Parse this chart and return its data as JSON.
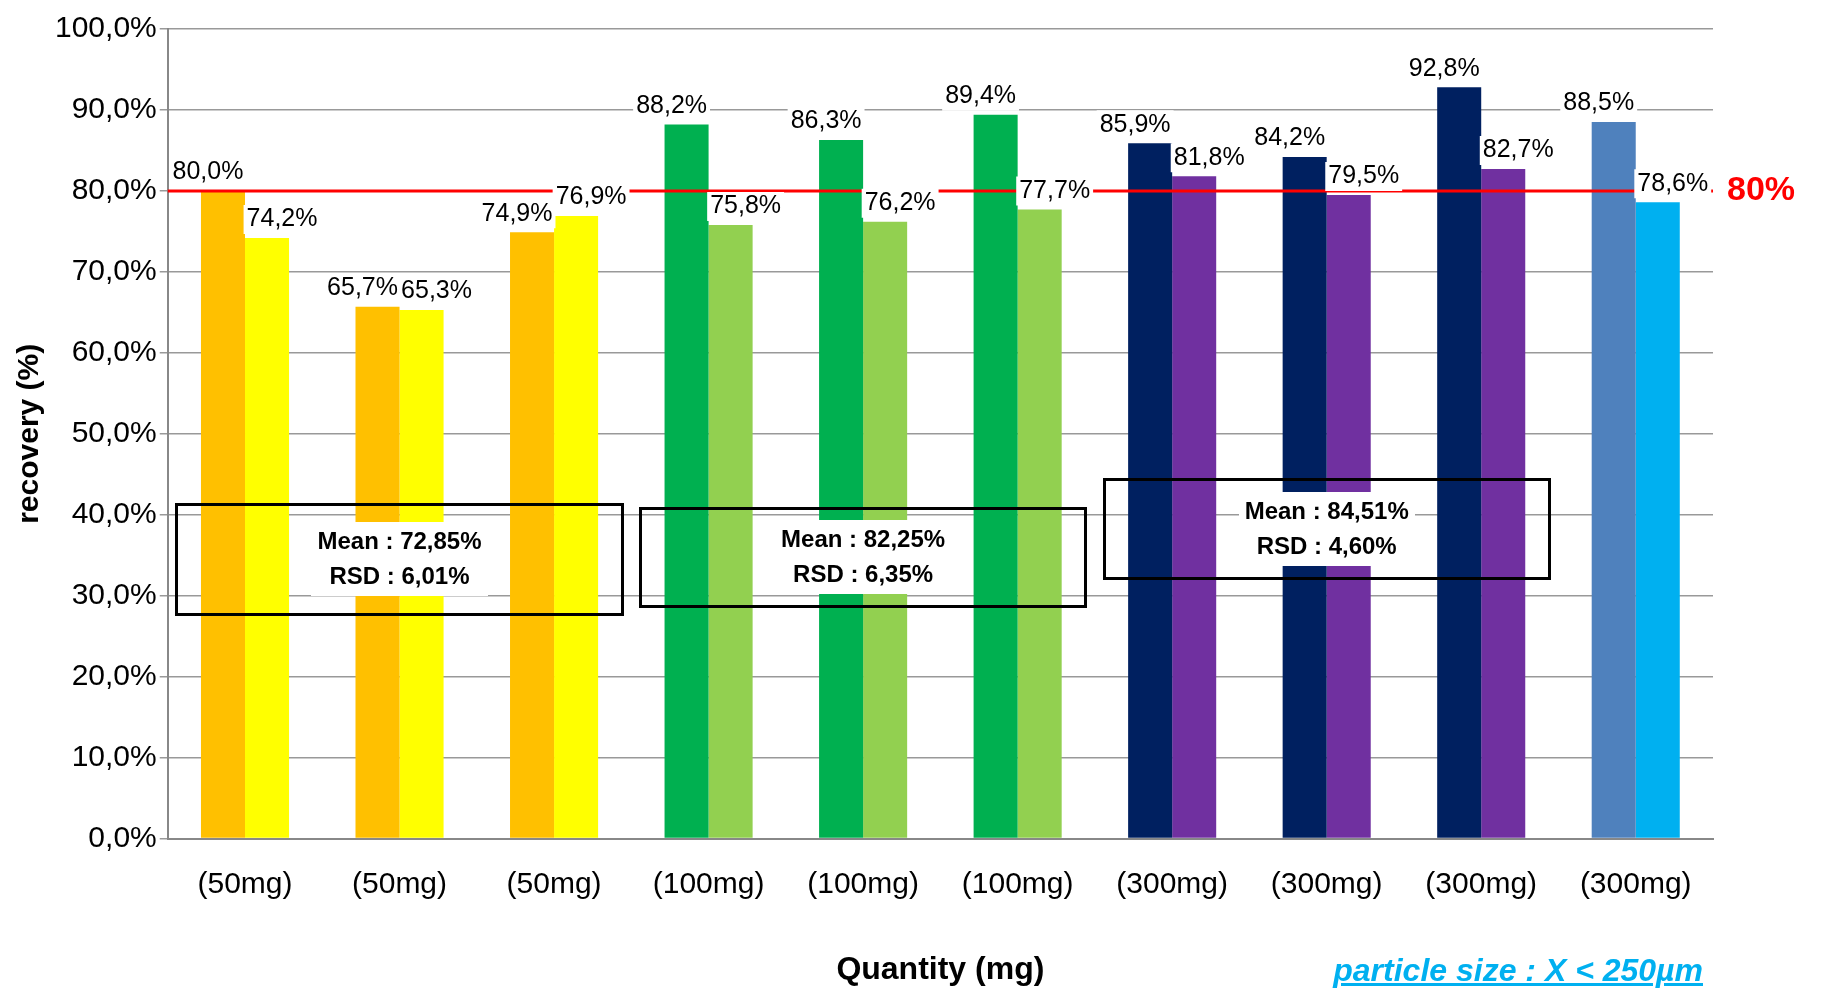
{
  "chart_data": {
    "type": "bar",
    "xlabel": "Quantity (mg)",
    "ylabel": "recovery (%)",
    "categories": [
      "(50mg)",
      "(50mg)",
      "(50mg)",
      "(100mg)",
      "(100mg)",
      "(100mg)",
      "(300mg)",
      "(300mg)",
      "(300mg)",
      "(300mg)"
    ],
    "series": [
      {
        "colors": [
          "#ffc000",
          "#ffc000",
          "#ffc000",
          "#00b050",
          "#00b050",
          "#00b050",
          "#002060",
          "#002060",
          "#002060",
          "#4f81bd"
        ],
        "values": [
          80.0,
          65.7,
          74.9,
          88.2,
          86.3,
          89.4,
          85.9,
          84.2,
          92.8,
          88.5
        ],
        "value_labels": [
          "80,0%",
          "65,7%",
          "74,9%",
          "88,2%",
          "86,3%",
          "89,4%",
          "85,9%",
          "84,2%",
          "92,8%",
          "88,5%"
        ]
      },
      {
        "colors": [
          "#ffff00",
          "#ffff00",
          "#ffff00",
          "#92d050",
          "#92d050",
          "#92d050",
          "#7030a0",
          "#7030a0",
          "#7030a0",
          "#00b0f0"
        ],
        "values": [
          74.2,
          65.3,
          76.9,
          75.8,
          76.2,
          77.7,
          81.8,
          79.5,
          82.7,
          78.6
        ],
        "value_labels": [
          "74,2%",
          "65,3%",
          "76,9%",
          "75,8%",
          "76,2%",
          "77,7%",
          "81,8%",
          "79,5%",
          "82,7%",
          "78,6%"
        ]
      }
    ],
    "ylim": [
      0,
      100
    ],
    "yticks": [
      {
        "value": 0,
        "label": "0,0%"
      },
      {
        "value": 10,
        "label": "10,0%"
      },
      {
        "value": 20,
        "label": "20,0%"
      },
      {
        "value": 30,
        "label": "30,0%"
      },
      {
        "value": 40,
        "label": "40,0%"
      },
      {
        "value": 50,
        "label": "50,0%"
      },
      {
        "value": 60,
        "label": "60,0%"
      },
      {
        "value": 70,
        "label": "70,0%"
      },
      {
        "value": 80,
        "label": "80,0%"
      },
      {
        "value": 90,
        "label": "90,0%"
      },
      {
        "value": 100,
        "label": "100,0%"
      }
    ],
    "grid": "y",
    "legend": false,
    "ref_lines": [
      {
        "axis": "y",
        "value": 80,
        "label": "80%",
        "color": "#ff0000"
      }
    ],
    "annotations": [
      "Mean : 72,85%\nRSD : 6,01%",
      "Mean : 82,25%\nRSD : 6,35%",
      "Mean : 84,51%\nRSD : 4,60%",
      "particle size : X < 250µm"
    ]
  }
}
